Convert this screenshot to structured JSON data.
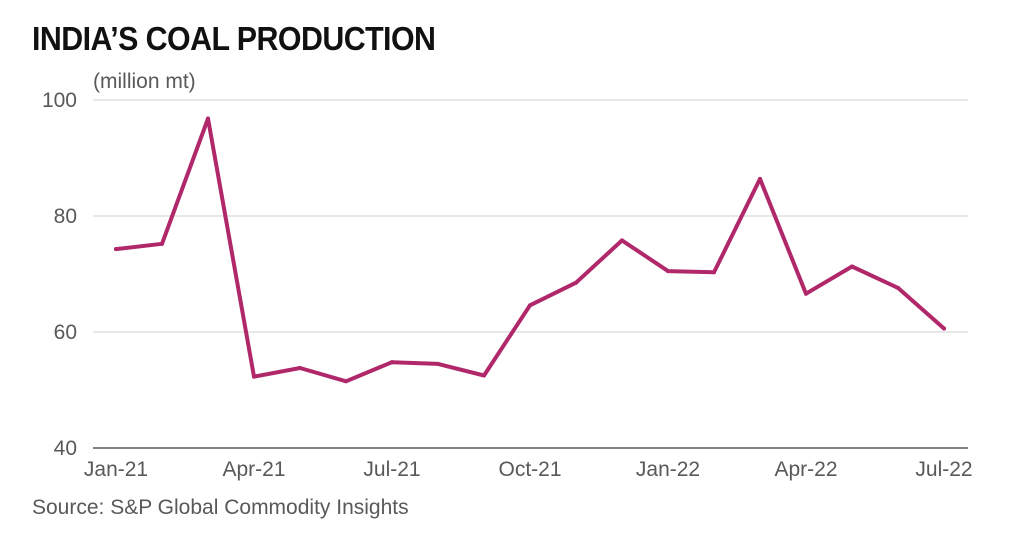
{
  "chart_data": {
    "type": "line",
    "title": "INDIA’S COAL PRODUCTION",
    "ylabel": "(million mt)",
    "xlabel": "",
    "source": "Source: S&P Global Commodity Insights",
    "ylim": [
      40,
      100
    ],
    "yticks": [
      40,
      60,
      80,
      100
    ],
    "x": [
      "Jan-21",
      "Feb-21",
      "Mar-21",
      "Apr-21",
      "May-21",
      "Jun-21",
      "Jul-21",
      "Aug-21",
      "Sep-21",
      "Oct-21",
      "Nov-21",
      "Dec-21",
      "Jan-22",
      "Feb-22",
      "Mar-22",
      "Apr-22",
      "May-22",
      "Jun-22",
      "Jul-22"
    ],
    "xtick_labels": [
      "Jan-21",
      "Apr-21",
      "Jul-21",
      "Oct-21",
      "Jan-22",
      "Apr-22",
      "Jul-22"
    ],
    "grid": true,
    "colors": {
      "line": "#b0286a",
      "grid": "#d9d9d9",
      "axis": "#58595b"
    },
    "series": [
      {
        "name": "India coal production",
        "values": [
          74.3,
          75.2,
          96.8,
          52.3,
          53.8,
          51.5,
          54.8,
          54.5,
          52.5,
          64.6,
          68.5,
          75.8,
          70.5,
          70.3,
          86.4,
          66.6,
          71.3,
          67.6,
          60.6
        ]
      }
    ]
  }
}
